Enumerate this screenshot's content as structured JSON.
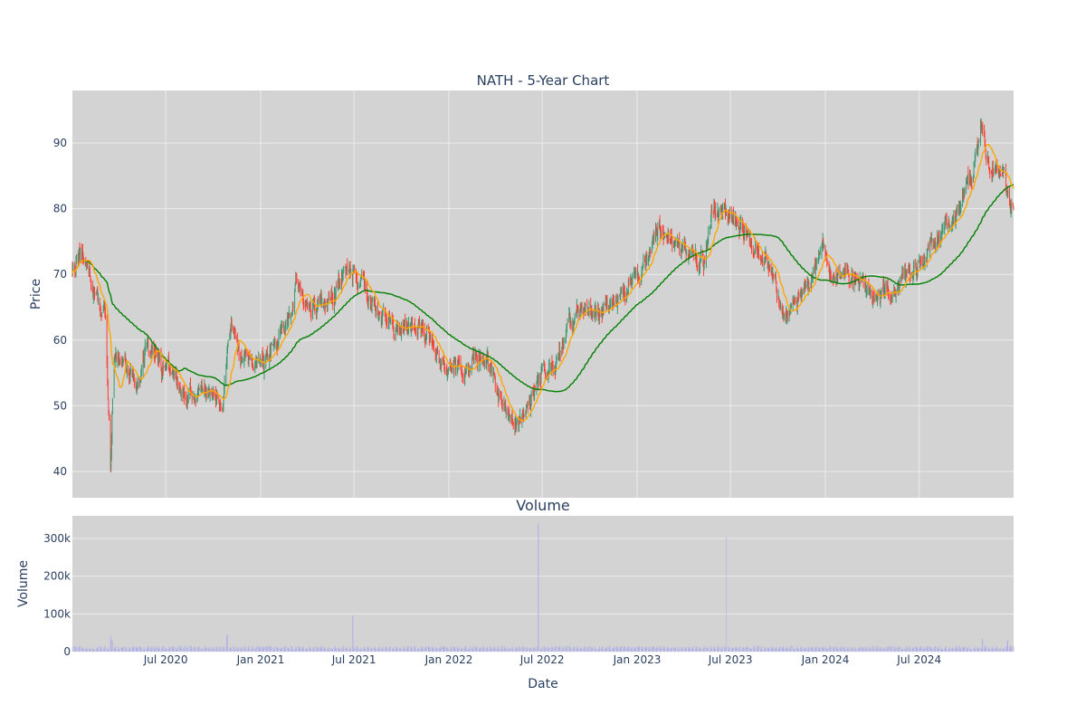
{
  "colors": {
    "plot_bg": "#d3d3d3",
    "grid": "#ebebeb",
    "up": "#3d9970",
    "down": "#ff4136",
    "ma_short": "#ffa500",
    "ma_long": "#008000",
    "volume": "#b0b0e8"
  },
  "chart_data": [
    {
      "type": "candlestick",
      "title": "NATH - 5-Year Chart",
      "ylabel": "Price",
      "xrange": [
        "2020-01-02",
        "2024-12-31"
      ],
      "ylim": [
        36,
        98
      ],
      "yticks": [
        40,
        50,
        60,
        70,
        80,
        90
      ],
      "grid": true,
      "price_path": [
        [
          "2020-01-02",
          71
        ],
        [
          "2020-01-18",
          73
        ],
        [
          "2020-02-03",
          70
        ],
        [
          "2020-02-20",
          66
        ],
        [
          "2020-03-06",
          63
        ],
        [
          "2020-03-16",
          40
        ],
        [
          "2020-03-22",
          57
        ],
        [
          "2020-04-10",
          58
        ],
        [
          "2020-04-25",
          55
        ],
        [
          "2020-05-10",
          53
        ],
        [
          "2020-05-25",
          60
        ],
        [
          "2020-06-10",
          58
        ],
        [
          "2020-06-25",
          55
        ],
        [
          "2020-07-12",
          55
        ],
        [
          "2020-08-01",
          52
        ],
        [
          "2020-08-25",
          52
        ],
        [
          "2020-09-20",
          52
        ],
        [
          "2020-10-20",
          51
        ],
        [
          "2020-10-28",
          58
        ],
        [
          "2020-11-05",
          63
        ],
        [
          "2020-11-20",
          58
        ],
        [
          "2020-12-15",
          56
        ],
        [
          "2021-01-10",
          57
        ],
        [
          "2021-02-01",
          60
        ],
        [
          "2021-02-20",
          62
        ],
        [
          "2021-03-12",
          69
        ],
        [
          "2021-04-05",
          65
        ],
        [
          "2021-05-01",
          65
        ],
        [
          "2021-05-25",
          67
        ],
        [
          "2021-06-15",
          71
        ],
        [
          "2021-07-05",
          70
        ],
        [
          "2021-08-01",
          66
        ],
        [
          "2021-08-25",
          64
        ],
        [
          "2021-09-15",
          62
        ],
        [
          "2021-10-10",
          63
        ],
        [
          "2021-11-10",
          62
        ],
        [
          "2021-12-01",
          60
        ],
        [
          "2021-12-20",
          56
        ],
        [
          "2022-01-15",
          56
        ],
        [
          "2022-02-10",
          55
        ],
        [
          "2022-03-05",
          58
        ],
        [
          "2022-03-25",
          55
        ],
        [
          "2022-04-10",
          51
        ],
        [
          "2022-05-05",
          47
        ],
        [
          "2022-05-25",
          48
        ],
        [
          "2022-06-15",
          52
        ],
        [
          "2022-07-05",
          56
        ],
        [
          "2022-07-25",
          56
        ],
        [
          "2022-08-20",
          62
        ],
        [
          "2022-09-15",
          65
        ],
        [
          "2022-10-10",
          64
        ],
        [
          "2022-11-10",
          65
        ],
        [
          "2022-12-10",
          67
        ],
        [
          "2023-01-10",
          70
        ],
        [
          "2023-02-05",
          77
        ],
        [
          "2023-03-01",
          76
        ],
        [
          "2023-04-01",
          73
        ],
        [
          "2023-05-10",
          72
        ],
        [
          "2023-05-25",
          80
        ],
        [
          "2023-06-20",
          79
        ],
        [
          "2023-07-20",
          78
        ],
        [
          "2023-08-20",
          74
        ],
        [
          "2023-09-15",
          72
        ],
        [
          "2023-10-10",
          64
        ],
        [
          "2023-11-10",
          66
        ],
        [
          "2023-12-10",
          70
        ],
        [
          "2023-12-25",
          75
        ],
        [
          "2024-01-15",
          70
        ],
        [
          "2024-02-10",
          70
        ],
        [
          "2024-03-10",
          69
        ],
        [
          "2024-04-10",
          66
        ],
        [
          "2024-05-10",
          68
        ],
        [
          "2024-06-10",
          70
        ],
        [
          "2024-07-10",
          72
        ],
        [
          "2024-08-10",
          76
        ],
        [
          "2024-09-10",
          79
        ],
        [
          "2024-10-10",
          85
        ],
        [
          "2024-10-28",
          92
        ],
        [
          "2024-11-15",
          86
        ],
        [
          "2024-12-05",
          86
        ],
        [
          "2024-12-31",
          79
        ]
      ],
      "ma_short_window": 20,
      "ma_long_window": 100
    },
    {
      "type": "bar",
      "title": "Volume",
      "xlabel": "Date",
      "ylabel": "Volume",
      "ylim": [
        0,
        360000
      ],
      "yticks": [
        0,
        100000,
        200000,
        300000
      ],
      "ytick_labels": [
        "0",
        "100k",
        "200k",
        "300k"
      ],
      "xticks": [
        "2020-07-01",
        "2021-01-01",
        "2021-07-01",
        "2022-01-01",
        "2022-07-01",
        "2023-01-01",
        "2023-07-01",
        "2024-01-01",
        "2024-07-01"
      ],
      "xtick_labels": [
        "Jul 2020",
        "Jan 2021",
        "Jul 2021",
        "Jan 2022",
        "Jul 2022",
        "Jan 2023",
        "Jul 2023",
        "Jan 2024",
        "Jul 2024"
      ],
      "typical_volume": 12000,
      "spikes": [
        [
          "2020-03-16",
          40000
        ],
        [
          "2020-03-20",
          30000
        ],
        [
          "2020-10-28",
          45000
        ],
        [
          "2021-06-28",
          95000
        ],
        [
          "2022-06-24",
          340000
        ],
        [
          "2023-06-24",
          305000
        ],
        [
          "2024-11-01",
          35000
        ],
        [
          "2024-12-20",
          30000
        ]
      ]
    }
  ]
}
